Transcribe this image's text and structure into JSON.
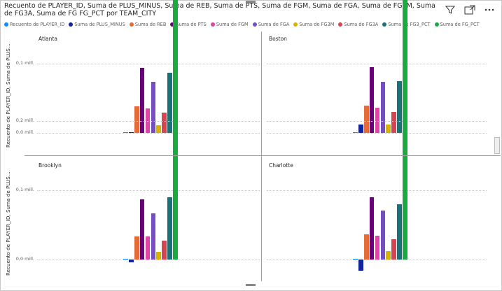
{
  "title": "Recuento de PLAYER_ID, Suma de PLUS_MINUS, Suma de REB, Suma de PTS, Suma de FGM, Suma de FGA, Suma de FG3M, Suma de FG3A, Suma de FG FG_PCT por TEAM_CITY",
  "icons": {
    "filter": "filter-icon",
    "focus": "focus-mode-icon",
    "more": "more-options-icon"
  },
  "chart_data": {
    "type": "bar",
    "series": [
      {
        "name": "Recuento de PLAYER_ID",
        "color": "#118DFF"
      },
      {
        "name": "Suma de PLUS_MINUS",
        "color": "#12239E"
      },
      {
        "name": "Suma de REB",
        "color": "#E66C37"
      },
      {
        "name": "Suma de PTS",
        "color": "#6B007B"
      },
      {
        "name": "Suma de FGM",
        "color": "#E044A7"
      },
      {
        "name": "Suma de FGA",
        "color": "#744EC2"
      },
      {
        "name": "Suma de FG3M",
        "color": "#D9B300"
      },
      {
        "name": "Suma de FG3A",
        "color": "#D64550"
      },
      {
        "name": "Suma de FG3_PCT",
        "color": "#197278"
      },
      {
        "name": "Suma de FG_PCT",
        "color": "#1AAB40"
      }
    ],
    "ylabel": "Recuento de PLAYER_ID, Suma de PLUS...",
    "yticks": [
      {
        "value": 0,
        "label": "0,0 mill."
      },
      {
        "value": 0.1,
        "label": "0,1 mill."
      },
      {
        "value": 0.2,
        "label": "0,2 mill."
      }
    ],
    "ylim": [
      0,
      0.22
    ],
    "panels": [
      {
        "label": "Atlanta",
        "values": [
          0.001,
          0.001,
          0.038,
          0.094,
          0.035,
          0.074,
          0.011,
          0.029,
          0.087,
          0.215
        ]
      },
      {
        "label": "Boston",
        "values": [
          0.001,
          0.012,
          0.039,
          0.095,
          0.036,
          0.074,
          0.012,
          0.03,
          0.075,
          0.209
        ]
      },
      {
        "label": "Brooklyn",
        "values": [
          0.001,
          -0.004,
          0.033,
          0.087,
          0.033,
          0.067,
          0.011,
          0.027,
          0.09,
          0.203
        ]
      },
      {
        "label": "Charlotte",
        "values": [
          0.001,
          -0.016,
          0.036,
          0.09,
          0.034,
          0.071,
          0.012,
          0.029,
          0.08,
          0.209
        ]
      }
    ]
  }
}
